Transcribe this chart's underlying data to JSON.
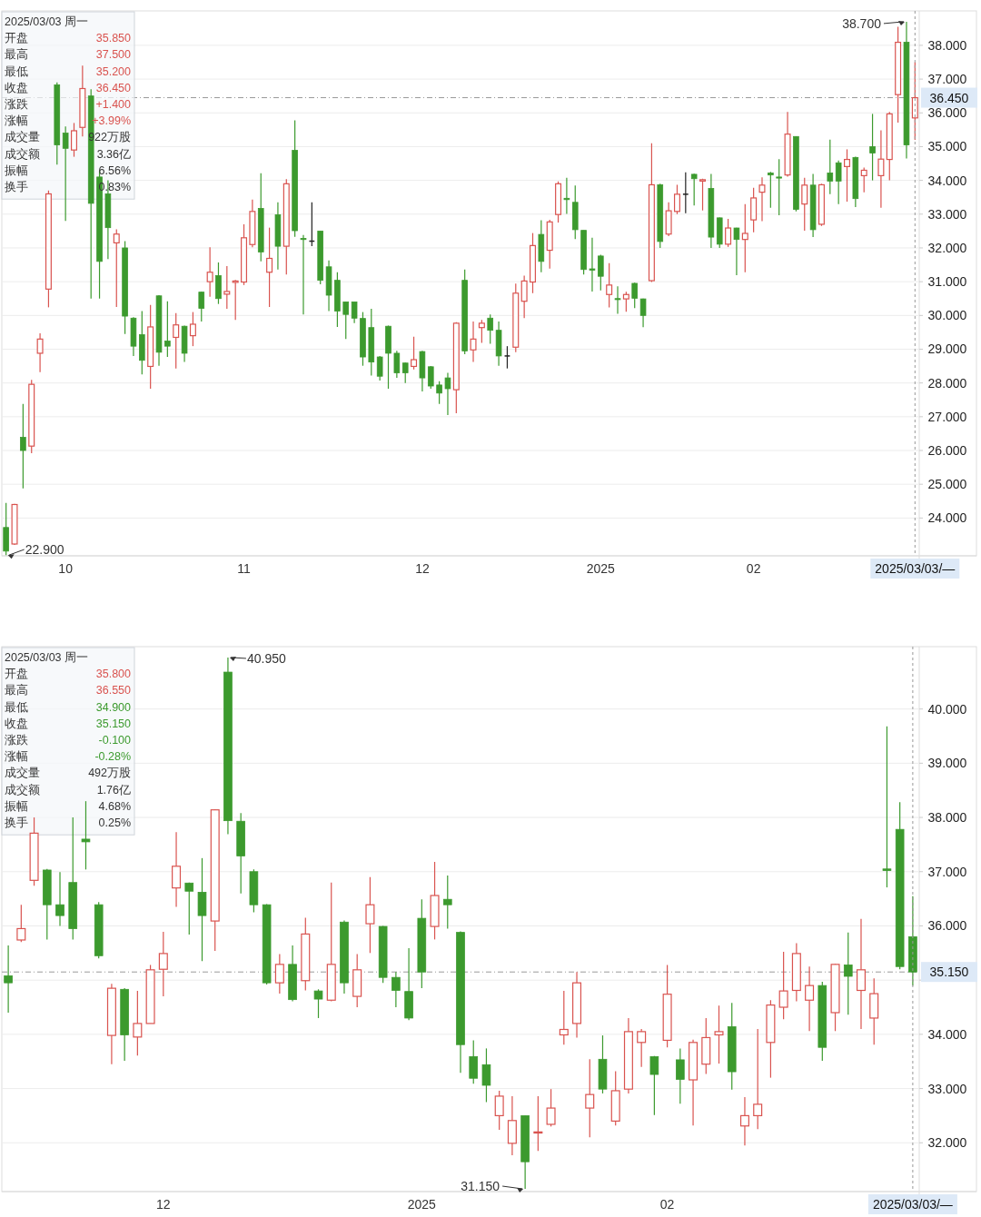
{
  "chart_data": [
    {
      "type": "candlestick",
      "categories": [
        null,
        null,
        null,
        null,
        null,
        null,
        null,
        "10",
        null,
        null,
        null,
        null,
        null,
        null,
        null,
        null,
        null,
        null,
        null,
        null,
        null,
        null,
        null,
        null,
        null,
        null,
        null,
        null,
        "11",
        null,
        null,
        null,
        null,
        null,
        null,
        null,
        null,
        null,
        null,
        null,
        null,
        null,
        null,
        null,
        null,
        null,
        null,
        null,
        null,
        "12",
        null,
        null,
        null,
        null,
        null,
        null,
        null,
        null,
        null,
        null,
        null,
        null,
        null,
        null,
        null,
        null,
        null,
        null,
        null,
        null,
        "2025",
        null,
        null,
        null,
        null,
        null,
        null,
        null,
        null,
        null,
        null,
        null,
        null,
        null,
        null,
        null,
        null,
        null,
        "02",
        null,
        null,
        null,
        null,
        null,
        null,
        null,
        null,
        null,
        null,
        null,
        null,
        null,
        null,
        null,
        null,
        null,
        null,
        "2025/03/03/—"
      ],
      "ohlc": [
        [
          23.72,
          24.45,
          22.9,
          23.02
        ],
        [
          23.23,
          24.42,
          23.2,
          24.4
        ],
        [
          26.39,
          27.38,
          24.88,
          26.0
        ],
        [
          26.13,
          28.09,
          25.92,
          27.96
        ],
        [
          28.88,
          29.47,
          28.32,
          29.3
        ],
        [
          30.78,
          33.7,
          30.24,
          33.6
        ],
        [
          36.83,
          36.9,
          34.47,
          35.05
        ],
        [
          35.4,
          35.6,
          32.8,
          34.95
        ],
        [
          34.9,
          35.7,
          34.7,
          35.47
        ],
        [
          35.57,
          37.4,
          35.3,
          36.72
        ],
        [
          36.5,
          36.7,
          30.5,
          33.32
        ],
        [
          34.1,
          34.3,
          30.5,
          31.6
        ],
        [
          33.6,
          34.0,
          31.67,
          32.6
        ],
        [
          32.15,
          32.55,
          30.25,
          32.41
        ],
        [
          32.0,
          32.2,
          29.45,
          29.98
        ],
        [
          29.92,
          29.95,
          28.8,
          29.09
        ],
        [
          29.43,
          30.13,
          28.25,
          28.67
        ],
        [
          28.49,
          30.31,
          27.83,
          29.66
        ],
        [
          30.58,
          30.6,
          28.51,
          28.91
        ],
        [
          29.24,
          30.42,
          28.77,
          29.09
        ],
        [
          29.35,
          30.07,
          28.43,
          29.72
        ],
        [
          29.68,
          29.7,
          28.62,
          28.88
        ],
        [
          29.4,
          30.1,
          29.09,
          29.74
        ],
        [
          30.69,
          30.7,
          29.82,
          30.21
        ],
        [
          31.0,
          32.02,
          30.55,
          31.28
        ],
        [
          31.18,
          31.57,
          30.34,
          30.5
        ],
        [
          30.63,
          31.46,
          30.2,
          30.71
        ],
        [
          30.98,
          31.05,
          29.87,
          31.02
        ],
        [
          30.99,
          32.7,
          30.9,
          32.3
        ],
        [
          32.1,
          33.43,
          32.02,
          33.08
        ],
        [
          33.17,
          34.21,
          31.6,
          31.88
        ],
        [
          31.28,
          32.6,
          30.25,
          31.69
        ],
        [
          32.98,
          33.35,
          31.36,
          32.05
        ],
        [
          32.05,
          34.04,
          31.21,
          33.9
        ],
        [
          34.89,
          35.78,
          32.33,
          32.51
        ],
        [
          32.28,
          32.38,
          30.03,
          32.25
        ],
        [
          32.2,
          33.35,
          32.05,
          32.2
        ],
        [
          32.5,
          32.5,
          30.92,
          31.04
        ],
        [
          31.44,
          31.63,
          30.13,
          30.6
        ],
        [
          31.04,
          31.28,
          29.66,
          30.13
        ],
        [
          30.4,
          30.4,
          29.3,
          30.03
        ],
        [
          30.4,
          30.4,
          29.77,
          29.92
        ],
        [
          29.91,
          30.1,
          28.51,
          28.77
        ],
        [
          29.64,
          30.2,
          28.22,
          28.62
        ],
        [
          28.77,
          28.8,
          28.07,
          28.2
        ],
        [
          29.68,
          29.7,
          27.83,
          28.88
        ],
        [
          28.88,
          28.95,
          28.15,
          28.3
        ],
        [
          28.59,
          28.6,
          28.0,
          28.3
        ],
        [
          28.49,
          29.37,
          28.4,
          28.69
        ],
        [
          28.93,
          28.95,
          27.75,
          28.15
        ],
        [
          28.48,
          28.5,
          27.83,
          27.91
        ],
        [
          27.94,
          28.05,
          27.38,
          27.7
        ],
        [
          28.15,
          28.3,
          27.05,
          27.83
        ],
        [
          27.8,
          29.8,
          27.1,
          29.77
        ],
        [
          31.04,
          31.36,
          28.85,
          28.95
        ],
        [
          28.98,
          29.82,
          28.62,
          29.3
        ],
        [
          29.64,
          29.87,
          29.19,
          29.77
        ],
        [
          29.92,
          30.03,
          29.16,
          29.56
        ],
        [
          29.56,
          29.82,
          28.51,
          28.8
        ],
        [
          28.8,
          29.09,
          28.43,
          28.8
        ],
        [
          29.06,
          30.94,
          28.91,
          30.66
        ],
        [
          30.42,
          31.18,
          29.92,
          31.02
        ],
        [
          30.99,
          32.44,
          30.66,
          32.07
        ],
        [
          32.4,
          32.82,
          31.28,
          31.6
        ],
        [
          31.93,
          32.83,
          31.39,
          32.77
        ],
        [
          32.99,
          33.97,
          32.75,
          33.9
        ],
        [
          33.47,
          34.08,
          33.01,
          33.43
        ],
        [
          33.35,
          33.85,
          32.26,
          32.54
        ],
        [
          32.52,
          32.52,
          31.21,
          31.36
        ],
        [
          31.38,
          32.3,
          30.71,
          31.34
        ],
        [
          31.76,
          31.8,
          30.74,
          31.16
        ],
        [
          30.62,
          31.55,
          30.24,
          30.9
        ],
        [
          30.5,
          30.86,
          30.05,
          30.48
        ],
        [
          30.49,
          30.7,
          30.11,
          30.62
        ],
        [
          30.95,
          30.97,
          30.22,
          30.51
        ],
        [
          30.49,
          30.5,
          29.65,
          30.0
        ],
        [
          31.03,
          35.1,
          30.99,
          33.87
        ],
        [
          33.87,
          33.9,
          32.0,
          32.19
        ],
        [
          32.41,
          33.35,
          32.35,
          33.1
        ],
        [
          33.08,
          33.87,
          33.0,
          33.59
        ],
        [
          33.59,
          34.24,
          33.03,
          33.59
        ],
        [
          34.18,
          34.2,
          33.26,
          34.05
        ],
        [
          33.98,
          34.05,
          33.11,
          34.02
        ],
        [
          33.76,
          34.19,
          32.0,
          32.32
        ],
        [
          32.89,
          32.9,
          32.0,
          32.11
        ],
        [
          32.11,
          32.86,
          32.03,
          32.59
        ],
        [
          32.59,
          32.6,
          31.19,
          32.25
        ],
        [
          32.25,
          33.3,
          31.28,
          32.43
        ],
        [
          32.83,
          33.78,
          32.46,
          33.48
        ],
        [
          33.65,
          34.09,
          32.79,
          33.86
        ],
        [
          34.22,
          34.25,
          33.19,
          34.16
        ],
        [
          34.1,
          34.63,
          32.97,
          34.08
        ],
        [
          34.16,
          36.03,
          34.11,
          35.37
        ],
        [
          35.3,
          35.3,
          33.08,
          33.14
        ],
        [
          33.3,
          34.08,
          32.51,
          33.86
        ],
        [
          33.86,
          34.19,
          32.32,
          32.54
        ],
        [
          32.7,
          33.9,
          32.65,
          33.87
        ],
        [
          34.22,
          35.21,
          33.59,
          33.98
        ],
        [
          34.52,
          34.59,
          33.3,
          33.98
        ],
        [
          34.41,
          34.92,
          33.37,
          34.62
        ],
        [
          34.68,
          34.7,
          33.21,
          33.46
        ],
        [
          34.14,
          34.38,
          33.65,
          34.3
        ],
        [
          35.0,
          35.97,
          34.0,
          34.81
        ],
        [
          34.14,
          35.48,
          33.19,
          34.63
        ],
        [
          34.62,
          36.03,
          34.0,
          35.97
        ],
        [
          36.54,
          38.55,
          35.71,
          38.09
        ],
        [
          38.09,
          38.7,
          34.65,
          35.05
        ],
        [
          35.85,
          37.5,
          35.2,
          36.45
        ]
      ],
      "ylim": [
        22.88,
        39.02
      ],
      "yticks": [
        {
          "value": 24,
          "label": "24.000"
        },
        {
          "value": 25,
          "label": "25.000"
        },
        {
          "value": 26,
          "label": "26.000"
        },
        {
          "value": 27,
          "label": "27.000"
        },
        {
          "value": 28,
          "label": "28.000"
        },
        {
          "value": 29,
          "label": "29.000"
        },
        {
          "value": 30,
          "label": "30.000"
        },
        {
          "value": 31,
          "label": "31.000"
        },
        {
          "value": 32,
          "label": "32.000"
        },
        {
          "value": 33,
          "label": "33.000"
        },
        {
          "value": 34,
          "label": "34.000"
        },
        {
          "value": 35,
          "label": "35.000"
        },
        {
          "value": 36,
          "label": "36.000"
        },
        {
          "value": 37,
          "label": "37.000"
        },
        {
          "value": 38,
          "label": "38.000"
        }
      ],
      "grid": "y",
      "ref_lines": [
        {
          "axis": "y",
          "value": 36.45,
          "label": "36.450",
          "line_style": "dashed"
        },
        {
          "axis": "x",
          "value": "2025/03/03/—",
          "line_style": "dashed"
        }
      ],
      "annotations": [
        "2025/03/03 周一",
        "开盘 35.850",
        "最高 37.500",
        "最低 35.200",
        "收盘 36.450",
        "涨跌 +1.400",
        "涨幅 +3.99%",
        "成交量 922万股",
        "成交额 3.36亿",
        "振幅 6.56%",
        "换手 0.83%",
        "38.700",
        "22.900"
      ]
    },
    {
      "type": "candlestick",
      "categories": [
        null,
        null,
        null,
        null,
        null,
        null,
        null,
        null,
        null,
        null,
        null,
        null,
        "12",
        null,
        null,
        null,
        null,
        null,
        null,
        null,
        null,
        null,
        null,
        null,
        null,
        null,
        null,
        null,
        null,
        null,
        null,
        null,
        "2025",
        null,
        null,
        null,
        null,
        null,
        null,
        null,
        null,
        null,
        null,
        null,
        null,
        null,
        null,
        null,
        null,
        null,
        null,
        "02",
        null,
        null,
        null,
        null,
        null,
        null,
        null,
        null,
        null,
        null,
        null,
        null,
        null,
        null,
        null,
        null,
        null,
        null,
        "2025/03/03/—"
      ],
      "ohlc": [
        [
          35.08,
          35.64,
          34.4,
          34.95
        ],
        [
          35.74,
          36.39,
          35.7,
          35.95
        ],
        [
          36.84,
          38.0,
          36.74,
          37.71
        ],
        [
          37.03,
          37.05,
          35.75,
          36.39
        ],
        [
          36.39,
          36.99,
          36.0,
          36.19
        ],
        [
          36.8,
          38.0,
          35.75,
          35.95
        ],
        [
          37.6,
          38.3,
          37.04,
          37.55
        ],
        [
          36.39,
          36.44,
          35.4,
          35.45
        ],
        [
          33.98,
          34.93,
          33.45,
          34.85
        ],
        [
          34.83,
          34.85,
          33.51,
          33.99
        ],
        [
          33.95,
          34.8,
          33.61,
          34.2
        ],
        [
          34.2,
          35.28,
          34.2,
          35.19
        ],
        [
          35.2,
          35.89,
          34.7,
          35.49
        ],
        [
          36.7,
          37.73,
          36.35,
          37.1
        ],
        [
          36.79,
          36.8,
          35.84,
          36.64
        ],
        [
          36.62,
          37.25,
          35.35,
          36.19
        ],
        [
          36.09,
          38.15,
          35.54,
          38.14
        ],
        [
          40.68,
          40.95,
          37.69,
          37.94
        ],
        [
          37.93,
          38.08,
          36.6,
          37.29
        ],
        [
          37.0,
          37.04,
          36.25,
          36.39
        ],
        [
          36.39,
          36.4,
          34.92,
          34.95
        ],
        [
          34.95,
          35.48,
          34.75,
          35.29
        ],
        [
          35.29,
          35.64,
          34.61,
          34.64
        ],
        [
          34.99,
          36.15,
          34.81,
          35.85
        ],
        [
          34.8,
          34.83,
          34.3,
          34.65
        ],
        [
          34.63,
          36.8,
          34.61,
          35.29
        ],
        [
          36.07,
          36.1,
          34.75,
          34.95
        ],
        [
          34.7,
          35.48,
          34.5,
          35.19
        ],
        [
          36.04,
          36.9,
          35.5,
          36.39
        ],
        [
          35.99,
          36.0,
          34.95,
          35.05
        ],
        [
          35.05,
          35.15,
          34.5,
          34.81
        ],
        [
          34.79,
          35.59,
          34.26,
          34.3
        ],
        [
          36.14,
          36.49,
          34.85,
          35.15
        ],
        [
          35.99,
          37.18,
          35.75,
          36.56
        ],
        [
          36.49,
          36.93,
          35.95,
          36.39
        ],
        [
          35.88,
          35.9,
          33.29,
          33.81
        ],
        [
          33.59,
          33.89,
          33.09,
          33.19
        ],
        [
          33.44,
          33.74,
          32.75,
          33.06
        ],
        [
          32.5,
          32.96,
          32.24,
          32.86
        ],
        [
          31.99,
          32.86,
          31.77,
          32.41
        ],
        [
          32.5,
          32.5,
          31.15,
          31.65
        ],
        [
          32.18,
          32.86,
          31.85,
          32.2
        ],
        [
          32.34,
          32.99,
          32.3,
          32.64
        ],
        [
          33.99,
          34.8,
          33.81,
          34.09
        ],
        [
          34.2,
          35.15,
          33.94,
          34.95
        ],
        [
          32.64,
          33.54,
          32.1,
          32.89
        ],
        [
          33.54,
          33.98,
          32.91,
          32.99
        ],
        [
          32.4,
          33.32,
          32.32,
          32.96
        ],
        [
          32.99,
          34.3,
          32.91,
          34.05
        ],
        [
          33.85,
          34.1,
          33.4,
          34.05
        ],
        [
          33.59,
          33.6,
          32.51,
          33.26
        ],
        [
          33.89,
          35.28,
          33.76,
          34.74
        ],
        [
          33.53,
          33.74,
          32.72,
          33.17
        ],
        [
          33.16,
          33.9,
          32.32,
          33.85
        ],
        [
          33.45,
          34.3,
          33.27,
          33.94
        ],
        [
          33.99,
          34.53,
          33.46,
          34.05
        ],
        [
          34.14,
          34.58,
          32.98,
          33.31
        ],
        [
          32.31,
          32.84,
          31.95,
          32.5
        ],
        [
          32.5,
          34.1,
          32.25,
          32.71
        ],
        [
          33.85,
          34.63,
          33.2,
          34.54
        ],
        [
          34.5,
          35.52,
          34.28,
          34.8
        ],
        [
          34.81,
          35.68,
          34.61,
          35.49
        ],
        [
          34.63,
          35.25,
          34.06,
          34.9
        ],
        [
          34.9,
          34.97,
          33.51,
          33.76
        ],
        [
          34.4,
          35.3,
          34.06,
          35.29
        ],
        [
          35.28,
          35.88,
          34.36,
          35.07
        ],
        [
          34.81,
          36.13,
          34.1,
          35.19
        ],
        [
          34.3,
          35.03,
          33.81,
          34.75
        ],
        [
          37.05,
          39.68,
          36.71,
          37.02
        ],
        [
          37.78,
          38.28,
          35.2,
          35.25
        ],
        [
          35.8,
          36.55,
          34.9,
          35.15
        ]
      ],
      "ylim": [
        31.1,
        41.15
      ],
      "yticks": [
        {
          "value": 32,
          "label": "32.000"
        },
        {
          "value": 33,
          "label": "33.000"
        },
        {
          "value": 34,
          "label": "34.000"
        },
        {
          "value": 35,
          "label": null
        },
        {
          "value": 36,
          "label": "36.000"
        },
        {
          "value": 37,
          "label": "37.000"
        },
        {
          "value": 38,
          "label": "38.000"
        },
        {
          "value": 39,
          "label": "39.000"
        },
        {
          "value": 40,
          "label": "40.000"
        }
      ],
      "grid": "y",
      "ref_lines": [
        {
          "axis": "y",
          "value": 35.15,
          "label": "35.150",
          "line_style": "dashed"
        },
        {
          "axis": "x",
          "value": "2025/03/03/—",
          "line_style": "dashed"
        }
      ],
      "annotations": [
        "2025/03/03 周一",
        "开盘 35.800",
        "最高 36.550",
        "最低 34.900",
        "收盘 35.150",
        "涨跌 -0.100",
        "涨幅 -0.28%",
        "成交量 492万股",
        "成交额 1.76亿",
        "振幅 4.68%",
        "换手 0.25%",
        "40.950",
        "31.150"
      ]
    }
  ]
}
